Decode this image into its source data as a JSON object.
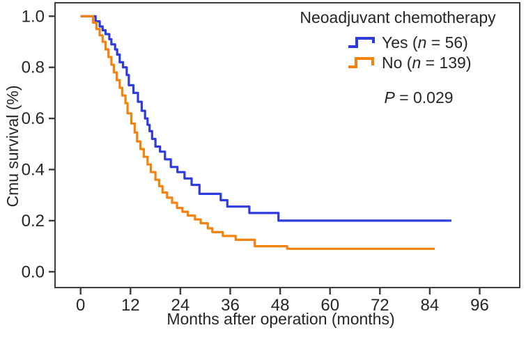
{
  "chart_data": {
    "type": "line",
    "subtype": "kaplan-meier-step",
    "title": "",
    "xlabel": "Months after operation (months)",
    "ylabel": "Cmu survival (%)",
    "x_ticks": [
      "0",
      "12",
      "24",
      "36",
      "48",
      "60",
      "72",
      "84",
      "96"
    ],
    "y_ticks": [
      "0.0",
      "0.2",
      "0.4",
      "0.6",
      "0.8",
      "1.0"
    ],
    "x_range": [
      0,
      96
    ],
    "y_range": [
      0.0,
      1.0
    ],
    "grid": false,
    "axis_color": "#3d3d3d",
    "text_color": "#262626",
    "legend": {
      "position": "top-right",
      "title": "Neoadjuvant chemotherapy",
      "entries": [
        {
          "label_pre": "Yes (",
          "label_italic": "n",
          "label_post": " = 56)",
          "color": "#2e3bdf"
        },
        {
          "label_pre": "No (",
          "label_italic": "n",
          "label_post": " = 139)",
          "color": "#f6820e"
        }
      ]
    },
    "annotation": {
      "italic": "P",
      "text": " = 0.029"
    },
    "series": [
      {
        "name": "Yes",
        "n": 56,
        "color": "#2e3bdf",
        "end_month": 89.2,
        "points": [
          [
            0,
            1.0
          ],
          [
            3.6,
            0.98
          ],
          [
            4.6,
            0.96
          ],
          [
            5.3,
            0.945
          ],
          [
            6.0,
            0.93
          ],
          [
            6.9,
            0.91
          ],
          [
            7.4,
            0.89
          ],
          [
            8.3,
            0.87
          ],
          [
            8.8,
            0.85
          ],
          [
            9.4,
            0.82
          ],
          [
            10.2,
            0.8
          ],
          [
            11.1,
            0.77
          ],
          [
            11.6,
            0.73
          ],
          [
            12.7,
            0.7
          ],
          [
            13.8,
            0.665
          ],
          [
            14.7,
            0.63
          ],
          [
            15.5,
            0.6
          ],
          [
            16.1,
            0.575
          ],
          [
            16.6,
            0.55
          ],
          [
            17.2,
            0.52
          ],
          [
            18.0,
            0.49
          ],
          [
            19.1,
            0.47
          ],
          [
            20.3,
            0.44
          ],
          [
            21.7,
            0.41
          ],
          [
            23.3,
            0.39
          ],
          [
            25.0,
            0.365
          ],
          [
            26.7,
            0.34
          ],
          [
            28.6,
            0.305
          ],
          [
            33.7,
            0.28
          ],
          [
            35.3,
            0.255
          ],
          [
            40.6,
            0.23
          ],
          [
            47.6,
            0.2
          ]
        ]
      },
      {
        "name": "No",
        "n": 139,
        "color": "#f6820e",
        "end_month": 85.2,
        "points": [
          [
            0,
            1.0
          ],
          [
            3.0,
            0.975
          ],
          [
            3.8,
            0.95
          ],
          [
            4.6,
            0.925
          ],
          [
            5.3,
            0.9
          ],
          [
            6.0,
            0.87
          ],
          [
            6.7,
            0.84
          ],
          [
            7.4,
            0.81
          ],
          [
            8.0,
            0.78
          ],
          [
            8.7,
            0.75
          ],
          [
            9.4,
            0.72
          ],
          [
            10.0,
            0.69
          ],
          [
            10.8,
            0.66
          ],
          [
            11.3,
            0.62
          ],
          [
            12.2,
            0.58
          ],
          [
            13.0,
            0.545
          ],
          [
            13.6,
            0.51
          ],
          [
            14.4,
            0.48
          ],
          [
            15.2,
            0.45
          ],
          [
            16.1,
            0.42
          ],
          [
            16.9,
            0.39
          ],
          [
            18.0,
            0.36
          ],
          [
            18.9,
            0.335
          ],
          [
            19.7,
            0.31
          ],
          [
            20.8,
            0.29
          ],
          [
            22.0,
            0.27
          ],
          [
            23.2,
            0.25
          ],
          [
            24.5,
            0.235
          ],
          [
            25.8,
            0.22
          ],
          [
            27.5,
            0.205
          ],
          [
            28.9,
            0.19
          ],
          [
            30.6,
            0.17
          ],
          [
            31.7,
            0.155
          ],
          [
            34.2,
            0.14
          ],
          [
            37.3,
            0.125
          ],
          [
            41.9,
            0.1
          ],
          [
            49.7,
            0.09
          ]
        ]
      }
    ]
  }
}
